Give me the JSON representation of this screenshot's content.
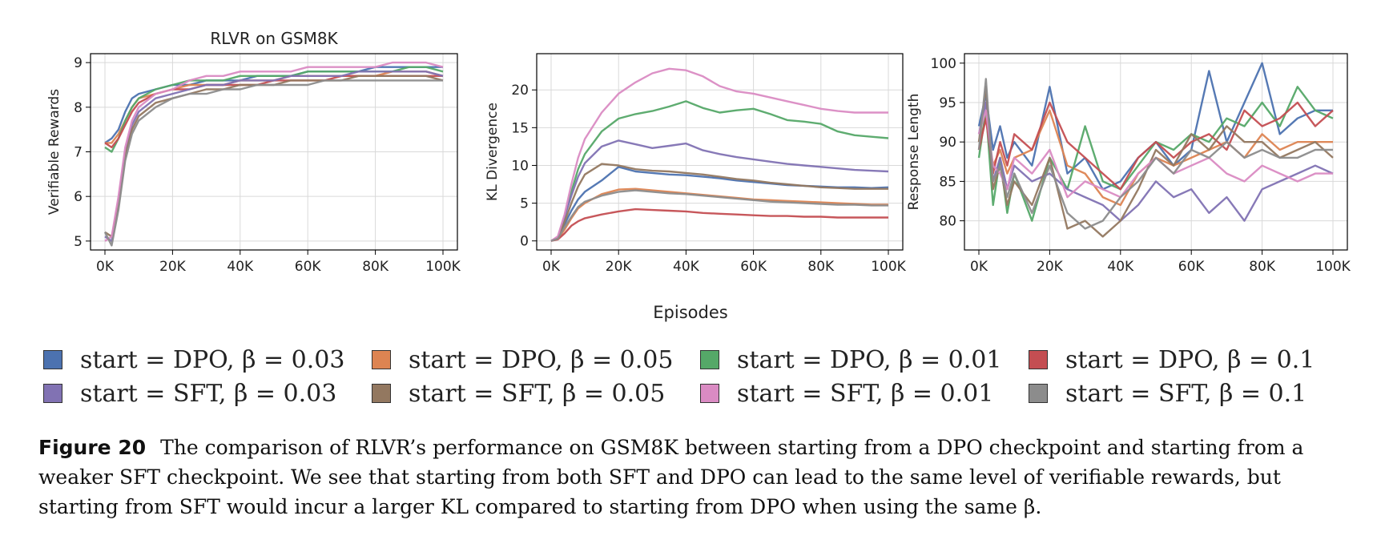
{
  "figure": {
    "shared_xlabel": "Episodes",
    "caption_label": "Figure 20",
    "caption_text": "The comparison of RLVR’s performance on GSM8K between starting from a DPO checkpoint and starting from a weaker SFT checkpoint. We see that starting from both SFT and DPO can lead to the same level of verifiable rewards, but starting from SFT would incur a larger KL compared to starting from DPO when using the same β."
  },
  "legend": [
    {
      "label": "start = DPO, β = 0.03",
      "color": "#4c72b0"
    },
    {
      "label": "start = DPO, β = 0.05",
      "color": "#dd8452"
    },
    {
      "label": "start = DPO, β = 0.01",
      "color": "#55a868"
    },
    {
      "label": "start = DPO, β = 0.1",
      "color": "#c44e52"
    },
    {
      "label": "start = SFT, β = 0.03",
      "color": "#8172b3"
    },
    {
      "label": "start = SFT, β = 0.05",
      "color": "#937860"
    },
    {
      "label": "start = SFT, β = 0.01",
      "color": "#da8bc3"
    },
    {
      "label": "start = SFT, β = 0.1",
      "color": "#8c8c8c"
    }
  ],
  "chart_data": [
    {
      "type": "line",
      "title": "RLVR on GSM8K",
      "xlabel": "",
      "ylabel": "Verifiable Rewards",
      "xlim": [
        0,
        100000
      ],
      "ylim": [
        4.8,
        9.2
      ],
      "xticks": [
        0,
        20000,
        40000,
        60000,
        80000,
        100000
      ],
      "xtick_labels": [
        "0K",
        "20K",
        "40K",
        "60K",
        "80K",
        "100K"
      ],
      "yticks": [
        5,
        6,
        7,
        8,
        9
      ],
      "ytick_labels": [
        "5",
        "6",
        "7",
        "8",
        "9"
      ],
      "grid": true,
      "x": [
        0,
        2000,
        4000,
        6000,
        8000,
        10000,
        15000,
        20000,
        25000,
        30000,
        35000,
        40000,
        45000,
        50000,
        55000,
        60000,
        65000,
        70000,
        75000,
        80000,
        85000,
        90000,
        95000,
        100000
      ],
      "series": [
        {
          "color": "#4c72b0",
          "values": [
            7.2,
            7.3,
            7.5,
            7.9,
            8.2,
            8.3,
            8.4,
            8.5,
            8.5,
            8.6,
            8.6,
            8.6,
            8.7,
            8.7,
            8.7,
            8.8,
            8.8,
            8.8,
            8.8,
            8.9,
            8.9,
            8.9,
            8.9,
            8.9
          ]
        },
        {
          "color": "#dd8452",
          "values": [
            7.2,
            7.2,
            7.4,
            7.7,
            8.0,
            8.2,
            8.3,
            8.4,
            8.5,
            8.5,
            8.5,
            8.6,
            8.6,
            8.6,
            8.7,
            8.7,
            8.7,
            8.7,
            8.7,
            8.7,
            8.8,
            8.8,
            8.8,
            8.7
          ]
        },
        {
          "color": "#55a868",
          "values": [
            7.1,
            7.0,
            7.3,
            7.7,
            8.0,
            8.2,
            8.4,
            8.5,
            8.6,
            8.6,
            8.6,
            8.7,
            8.7,
            8.7,
            8.7,
            8.8,
            8.8,
            8.8,
            8.8,
            8.8,
            8.8,
            8.9,
            8.9,
            8.8
          ]
        },
        {
          "color": "#c44e52",
          "values": [
            7.2,
            7.1,
            7.3,
            7.6,
            7.9,
            8.1,
            8.3,
            8.4,
            8.4,
            8.5,
            8.5,
            8.5,
            8.5,
            8.6,
            8.6,
            8.6,
            8.6,
            8.7,
            8.7,
            8.7,
            8.7,
            8.7,
            8.7,
            8.7
          ]
        },
        {
          "color": "#8172b3",
          "values": [
            5.1,
            5.0,
            5.9,
            7.0,
            7.6,
            7.9,
            8.2,
            8.3,
            8.4,
            8.5,
            8.5,
            8.6,
            8.6,
            8.6,
            8.7,
            8.7,
            8.7,
            8.7,
            8.8,
            8.8,
            8.8,
            8.8,
            8.8,
            8.7
          ]
        },
        {
          "color": "#937860",
          "values": [
            5.2,
            5.1,
            5.8,
            6.9,
            7.5,
            7.8,
            8.1,
            8.2,
            8.3,
            8.4,
            8.4,
            8.5,
            8.5,
            8.5,
            8.6,
            8.6,
            8.6,
            8.6,
            8.7,
            8.7,
            8.7,
            8.7,
            8.7,
            8.6
          ]
        },
        {
          "color": "#da8bc3",
          "values": [
            5.0,
            5.1,
            6.0,
            7.1,
            7.7,
            8.0,
            8.3,
            8.4,
            8.6,
            8.7,
            8.7,
            8.8,
            8.8,
            8.8,
            8.8,
            8.9,
            8.9,
            8.9,
            8.9,
            8.9,
            9.0,
            9.0,
            9.0,
            8.9
          ]
        },
        {
          "color": "#8c8c8c",
          "values": [
            5.2,
            4.9,
            5.7,
            6.8,
            7.4,
            7.7,
            8.0,
            8.2,
            8.3,
            8.3,
            8.4,
            8.4,
            8.5,
            8.5,
            8.5,
            8.5,
            8.6,
            8.6,
            8.6,
            8.6,
            8.6,
            8.6,
            8.6,
            8.6
          ]
        }
      ]
    },
    {
      "type": "line",
      "title": "",
      "xlabel": "",
      "ylabel": "KL Divergence",
      "xlim": [
        0,
        100000
      ],
      "ylim": [
        -1.2,
        24.8
      ],
      "xticks": [
        0,
        20000,
        40000,
        60000,
        80000,
        100000
      ],
      "xtick_labels": [
        "0K",
        "20K",
        "40K",
        "60K",
        "80K",
        "100K"
      ],
      "yticks": [
        0,
        5,
        10,
        15,
        20
      ],
      "ytick_labels": [
        "0",
        "5",
        "10",
        "15",
        "20"
      ],
      "grid": true,
      "x": [
        0,
        2000,
        4000,
        6000,
        8000,
        10000,
        15000,
        20000,
        25000,
        30000,
        35000,
        40000,
        45000,
        50000,
        55000,
        60000,
        65000,
        70000,
        75000,
        80000,
        85000,
        90000,
        95000,
        100000
      ],
      "series": [
        {
          "color": "#4c72b0",
          "values": [
            0,
            0.4,
            2.2,
            4.0,
            5.5,
            6.5,
            8.0,
            9.8,
            9.2,
            9.0,
            8.8,
            8.7,
            8.5,
            8.3,
            8.0,
            7.8,
            7.6,
            7.4,
            7.3,
            7.2,
            7.1,
            7.1,
            7.0,
            7.1
          ]
        },
        {
          "color": "#dd8452",
          "values": [
            0,
            0.3,
            1.5,
            3.0,
            4.3,
            5.0,
            6.2,
            6.8,
            6.9,
            6.7,
            6.5,
            6.3,
            6.1,
            5.9,
            5.7,
            5.5,
            5.4,
            5.3,
            5.2,
            5.1,
            5.0,
            4.9,
            4.8,
            4.8
          ]
        },
        {
          "color": "#55a868",
          "values": [
            0,
            0.5,
            3.0,
            6.5,
            9.5,
            11.5,
            14.5,
            16.2,
            16.8,
            17.2,
            17.8,
            18.5,
            17.6,
            17.0,
            17.3,
            17.5,
            16.8,
            16.0,
            15.8,
            15.5,
            14.5,
            14.0,
            13.8,
            13.6
          ]
        },
        {
          "color": "#c44e52",
          "values": [
            0,
            0.2,
            1.0,
            2.0,
            2.6,
            3.0,
            3.5,
            3.9,
            4.2,
            4.1,
            4.0,
            3.9,
            3.7,
            3.6,
            3.5,
            3.4,
            3.3,
            3.3,
            3.2,
            3.2,
            3.1,
            3.1,
            3.1,
            3.1
          ]
        },
        {
          "color": "#8172b3",
          "values": [
            0,
            0.5,
            3.2,
            6.0,
            8.5,
            10.3,
            12.5,
            13.3,
            12.8,
            12.3,
            12.6,
            12.9,
            12.0,
            11.5,
            11.1,
            10.8,
            10.5,
            10.2,
            10.0,
            9.8,
            9.6,
            9.4,
            9.3,
            9.2
          ]
        },
        {
          "color": "#937860",
          "values": [
            0,
            0.4,
            2.5,
            5.0,
            7.2,
            8.8,
            10.2,
            10.0,
            9.5,
            9.3,
            9.2,
            9.0,
            8.8,
            8.5,
            8.2,
            8.0,
            7.7,
            7.5,
            7.3,
            7.1,
            7.0,
            6.9,
            6.9,
            6.9
          ]
        },
        {
          "color": "#da8bc3",
          "values": [
            0,
            0.6,
            3.5,
            7.5,
            11.0,
            13.5,
            17.0,
            19.5,
            21.0,
            22.2,
            22.8,
            22.6,
            21.8,
            20.5,
            19.8,
            19.5,
            19.0,
            18.5,
            18.0,
            17.5,
            17.2,
            17.0,
            17.0,
            17.0
          ]
        },
        {
          "color": "#8c8c8c",
          "values": [
            0,
            0.3,
            1.8,
            3.2,
            4.5,
            5.2,
            6.0,
            6.5,
            6.7,
            6.5,
            6.3,
            6.2,
            6.0,
            5.8,
            5.6,
            5.4,
            5.2,
            5.1,
            5.0,
            4.9,
            4.8,
            4.8,
            4.7,
            4.7
          ]
        }
      ]
    },
    {
      "type": "line",
      "title": "",
      "xlabel": "",
      "ylabel": "Response Length",
      "xlim": [
        0,
        100000
      ],
      "ylim": [
        76.3,
        101.2
      ],
      "xticks": [
        0,
        20000,
        40000,
        60000,
        80000,
        100000
      ],
      "xtick_labels": [
        "0K",
        "20K",
        "40K",
        "60K",
        "80K",
        "100K"
      ],
      "yticks": [
        80,
        85,
        90,
        95,
        100
      ],
      "ytick_labels": [
        "80",
        "85",
        "90",
        "95",
        "100"
      ],
      "grid": true,
      "x": [
        0,
        2000,
        4000,
        6000,
        8000,
        10000,
        15000,
        20000,
        25000,
        30000,
        35000,
        40000,
        45000,
        50000,
        55000,
        60000,
        65000,
        70000,
        75000,
        80000,
        85000,
        90000,
        95000,
        100000
      ],
      "series": [
        {
          "color": "#4c72b0",
          "values": [
            92,
            96,
            89,
            92,
            88,
            90,
            87,
            97,
            86,
            88,
            84,
            85,
            88,
            90,
            87,
            89,
            99,
            90,
            95,
            100,
            91,
            93,
            94,
            94
          ]
        },
        {
          "color": "#dd8452",
          "values": [
            90,
            93,
            87,
            89,
            86,
            88,
            89,
            94,
            87,
            86,
            83,
            82,
            86,
            88,
            87,
            88,
            89,
            90,
            88,
            91,
            89,
            90,
            90,
            90
          ]
        },
        {
          "color": "#55a868",
          "values": [
            88,
            94,
            82,
            88,
            81,
            86,
            80,
            88,
            84,
            92,
            85,
            84,
            87,
            90,
            89,
            91,
            90,
            93,
            92,
            95,
            92,
            97,
            94,
            93
          ]
        },
        {
          "color": "#c44e52",
          "values": [
            89,
            93,
            86,
            90,
            87,
            91,
            89,
            95,
            90,
            88,
            86,
            84,
            88,
            90,
            88,
            90,
            91,
            89,
            94,
            92,
            93,
            95,
            92,
            94
          ]
        },
        {
          "color": "#8172b3",
          "values": [
            91,
            95,
            85,
            88,
            84,
            87,
            85,
            86,
            84,
            83,
            82,
            80,
            82,
            85,
            83,
            84,
            81,
            83,
            80,
            84,
            85,
            86,
            87,
            86
          ]
        },
        {
          "color": "#937860",
          "values": [
            90,
            97,
            84,
            87,
            82,
            85,
            82,
            88,
            79,
            80,
            78,
            80,
            84,
            89,
            87,
            91,
            89,
            92,
            90,
            90,
            88,
            89,
            90,
            88
          ]
        },
        {
          "color": "#da8bc3",
          "values": [
            91,
            94,
            87,
            86,
            84,
            88,
            86,
            89,
            83,
            85,
            84,
            83,
            86,
            88,
            86,
            87,
            88,
            86,
            85,
            87,
            86,
            85,
            86,
            86
          ]
        },
        {
          "color": "#8c8c8c",
          "values": [
            89,
            98,
            85,
            87,
            83,
            86,
            81,
            87,
            81,
            79,
            80,
            83,
            85,
            88,
            86,
            89,
            88,
            90,
            88,
            89,
            88,
            88,
            89,
            89
          ]
        }
      ]
    }
  ]
}
